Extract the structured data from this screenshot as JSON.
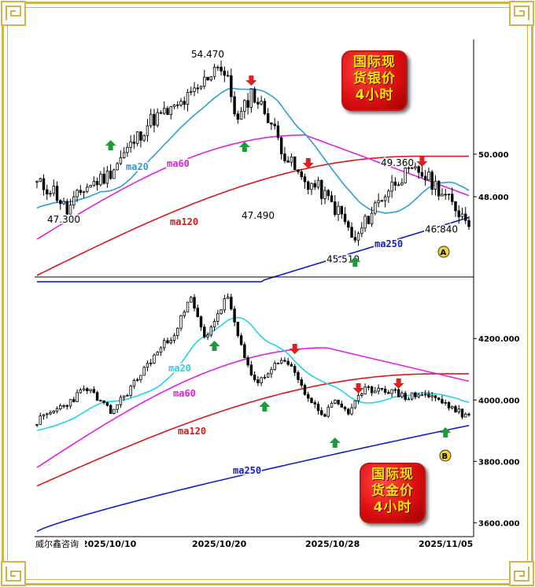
{
  "watermark": "威尔鑫咨询",
  "silver_label": [
    "国际现",
    "货银价",
    "4小时"
  ],
  "gold_label": [
    "国际现",
    "货金价",
    "4小时"
  ],
  "colors": {
    "ma20": "#2a9fd6",
    "ma20_gold": "#22d3e6",
    "ma60": "#e020e0",
    "ma120": "#d61a1a",
    "ma250": "#1020c8",
    "up_arrow": "#1f9a3a",
    "down_arrow": "#e02020",
    "frame_gold": "#d6b24a"
  },
  "chart_data": [
    {
      "type": "candlestick",
      "title": "国际现货银价 4小时",
      "y_ticks": [
        "50.000",
        "48.000"
      ],
      "y_tick_values": [
        50,
        48
      ],
      "ylim": [
        44.3,
        55.1
      ],
      "annotations": [
        {
          "text": "54.470",
          "value": 54.47
        },
        {
          "text": "47.300",
          "value": 47.3
        },
        {
          "text": "47.490",
          "value": 47.49
        },
        {
          "text": "45.510",
          "value": 45.51
        },
        {
          "text": "49.360",
          "value": 49.36
        },
        {
          "text": "46.840",
          "value": 46.84
        }
      ],
      "series_labels": [
        "ma20",
        "ma60",
        "ma120",
        "ma250"
      ],
      "marker": "A"
    },
    {
      "type": "candlestick",
      "title": "国际现货金价 4小时",
      "y_ticks": [
        "4200.000",
        "4000.000",
        "3800.000",
        "3600.000"
      ],
      "y_tick_values": [
        4200,
        4000,
        3800,
        3600
      ],
      "ylim": [
        3560,
        4380
      ],
      "series_labels": [
        "ma20",
        "ma60",
        "ma120",
        "ma250"
      ],
      "marker": "B",
      "x_ticks": [
        "2025/10/10",
        "2025/10/20",
        "2025/10/28",
        "2025/11/05"
      ]
    }
  ]
}
